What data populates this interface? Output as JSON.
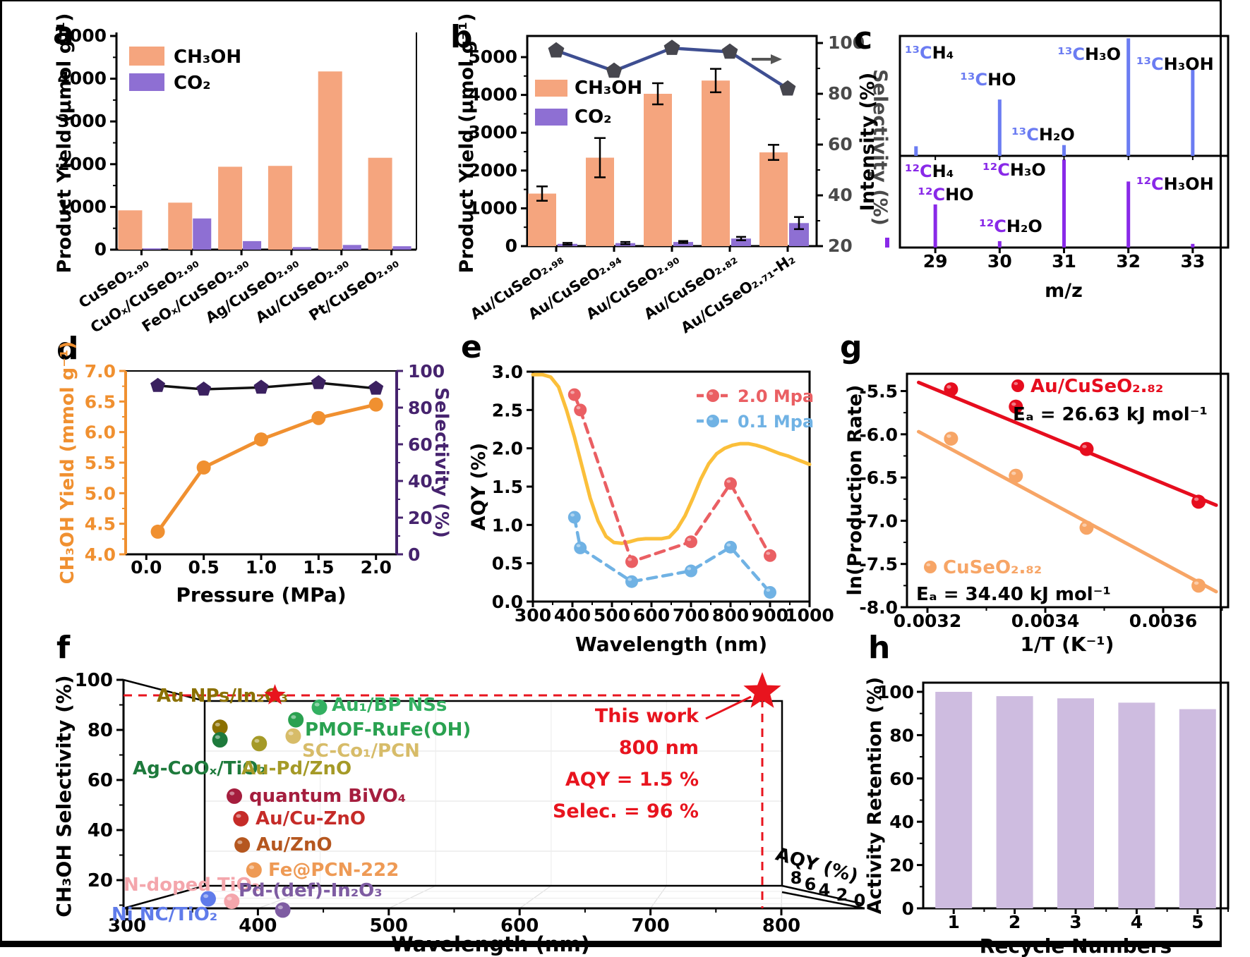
{
  "chart_data": [
    {
      "panel_label": "a",
      "type": "bar",
      "ylabel": "Product Yield (μmol g⁻¹)",
      "ylim": [
        0,
        5000
      ],
      "yticks": [
        0,
        1000,
        2000,
        3000,
        4000,
        5000
      ],
      "categories": [
        "CuSeO₂.₉₀",
        "CuOₓ/CuSeO₂.₉₀",
        "FeOₓ/CuSeO₂.₉₀",
        "Ag/CuSeO₂.₉₀",
        "Au/CuSeO₂.₉₀",
        "Pt/CuSeO₂.₉₀"
      ],
      "series": [
        {
          "name": "CH₃OH",
          "color": "#F5A57E",
          "values": [
            920,
            1100,
            1940,
            1960,
            4170,
            2150
          ]
        },
        {
          "name": "CO₂",
          "color": "#8E6FD3",
          "values": [
            30,
            730,
            200,
            60,
            110,
            80
          ]
        }
      ]
    },
    {
      "panel_label": "b",
      "type": "bar-line",
      "ylabel": "Product Yield (μmol g⁻¹)",
      "y2label": "Selectivity (%)",
      "ylim": [
        0,
        5600
      ],
      "yticks": [
        0,
        1000,
        2000,
        3000,
        4000,
        5000
      ],
      "y2ticks": [
        20,
        40,
        60,
        80,
        100
      ],
      "categories": [
        "Au/CuSeO₂.₉₈",
        "Au/CuSeO₂.₉₄",
        "Au/CuSeO₂.₉₀",
        "Au/CuSeO₂.₈₂",
        "Au/CuSeO₂.₇₁-H₂"
      ],
      "series": [
        {
          "name": "CH₃OH",
          "color": "#F5A57E",
          "values": [
            1390,
            2340,
            4030,
            4380,
            2480
          ],
          "errors": [
            190,
            520,
            280,
            310,
            200
          ]
        },
        {
          "name": "CO₂",
          "color": "#8E6FD3",
          "values": [
            60,
            80,
            110,
            200,
            610
          ],
          "errors": [
            25,
            30,
            25,
            45,
            160
          ]
        }
      ],
      "line": {
        "name": "Selectivity",
        "color": "#3E4E91",
        "marker_color": "#46464E",
        "values": [
          97,
          89,
          98,
          96.5,
          82
        ]
      }
    },
    {
      "panel_label": "c",
      "type": "mass-spec",
      "ylabel": "Intensity (%)",
      "xlabel": "m/z",
      "xticks": [
        29,
        30,
        31,
        32,
        33
      ],
      "top": {
        "color": "#6B7CF2",
        "peaks": [
          {
            "mz": 28.7,
            "h": 8
          },
          {
            "mz": 30,
            "h": 47
          },
          {
            "mz": 31,
            "h": 9
          },
          {
            "mz": 32,
            "h": 98
          },
          {
            "mz": 33,
            "h": 72
          }
        ],
        "labels": [
          {
            "prefix": "¹³C",
            "rest": "H₄"
          },
          {
            "prefix": "¹³C",
            "rest": "HO"
          },
          {
            "prefix": "¹³C",
            "rest": "H₂O"
          },
          {
            "prefix": "¹³C",
            "rest": "H₃O"
          },
          {
            "prefix": "¹³C",
            "rest": "H₃OH"
          }
        ]
      },
      "bottom": {
        "color": "#8929E8",
        "peaks": [
          {
            "mz": 29,
            "h": 47
          },
          {
            "mz": 30,
            "h": 7
          },
          {
            "mz": 31,
            "h": 96
          },
          {
            "mz": 32,
            "h": 72
          },
          {
            "mz": 33,
            "h": 4
          }
        ],
        "labels": [
          {
            "prefix": "¹²C",
            "rest": "H₄"
          },
          {
            "prefix": "¹²C",
            "rest": "H₃O"
          },
          {
            "prefix": "¹²C",
            "rest": "H₃OH"
          },
          {
            "prefix": "¹²C",
            "rest": "HO"
          },
          {
            "prefix": "¹²C",
            "rest": "H₂O"
          }
        ]
      }
    },
    {
      "panel_label": "d",
      "type": "dual-axis-line",
      "xlabel": "Pressure (MPa)",
      "ylabel": "CH₃OH Yield (mmol g⁻¹)",
      "y2label": "Selectivity (%)",
      "xticks": [
        0.0,
        0.5,
        1.0,
        1.5,
        2.0
      ],
      "ylim": [
        4.0,
        7.0
      ],
      "yticks": [
        4.0,
        4.5,
        5.0,
        5.5,
        6.0,
        6.5,
        7.0
      ],
      "y2lim": [
        0,
        100
      ],
      "y2ticks": [
        0,
        20,
        40,
        60,
        80,
        100
      ],
      "axis_colors": {
        "left": "#F09030",
        "right": "#46236E"
      },
      "series1": {
        "name": "CH₃OH Yield",
        "color": "#F09030",
        "x": [
          0.1,
          0.5,
          1.0,
          1.5,
          2.0
        ],
        "y": [
          4.37,
          5.42,
          5.88,
          6.23,
          6.45
        ]
      },
      "series2": {
        "name": "Selectivity",
        "color": "#111111",
        "marker_color": "#3B2160",
        "x": [
          0.1,
          0.5,
          1.0,
          1.5,
          2.0
        ],
        "y": [
          92,
          90,
          91,
          93.5,
          90.5
        ]
      }
    },
    {
      "panel_label": "e",
      "type": "multi-line",
      "xlabel": "Wavelength (nm)",
      "ylabel": "AQY (%)",
      "xlim": [
        300,
        1000
      ],
      "xticks": [
        300,
        400,
        500,
        600,
        700,
        800,
        900,
        1000
      ],
      "ylim": [
        0.0,
        3.0
      ],
      "yticks": [
        "0.0",
        "0.5",
        "1.0",
        "1.5",
        "2.0",
        "2.5",
        "3.0"
      ],
      "absorption": {
        "color": "#FBBF3A",
        "x": [
          300,
          325,
          345,
          365,
          385,
          405,
          425,
          445,
          465,
          485,
          505,
          525,
          545,
          565,
          585,
          605,
          625,
          645,
          665,
          685,
          705,
          725,
          745,
          765,
          785,
          805,
          825,
          845,
          865,
          885,
          905,
          925,
          945,
          965,
          985,
          1000
        ],
        "y": [
          2.96,
          2.96,
          2.93,
          2.8,
          2.5,
          2.15,
          1.75,
          1.35,
          1.05,
          0.85,
          0.77,
          0.76,
          0.78,
          0.81,
          0.82,
          0.82,
          0.82,
          0.84,
          0.95,
          1.12,
          1.35,
          1.6,
          1.8,
          1.93,
          2.0,
          2.04,
          2.06,
          2.06,
          2.04,
          2.01,
          1.97,
          1.93,
          1.9,
          1.86,
          1.82,
          1.79
        ]
      },
      "series": [
        {
          "name": "2.0 Mpa",
          "color": "#EA5F63",
          "x": [
            405,
            420,
            550,
            700,
            800,
            900
          ],
          "y": [
            2.7,
            2.5,
            0.52,
            0.78,
            1.54,
            0.6
          ]
        },
        {
          "name": "0.1 Mpa",
          "color": "#70B2E4",
          "x": [
            405,
            420,
            550,
            700,
            800,
            900
          ],
          "y": [
            1.1,
            0.7,
            0.26,
            0.4,
            0.71,
            0.12
          ]
        }
      ]
    },
    {
      "panel_label": "f",
      "type": "scatter3d",
      "xlabel": "Wavelength (nm)",
      "ylabel": "CH₃OH Selectivity (%)",
      "zlabel": "AQY (%)",
      "xticks": [
        300,
        400,
        500,
        600,
        700,
        800
      ],
      "yticks": [
        20,
        40,
        60,
        80,
        100
      ],
      "zticks": [
        8,
        6,
        4,
        2,
        0
      ],
      "points": [
        {
          "label": "Au NPs/In₂O₃",
          "color": "#8B7000",
          "wavelength": 371,
          "selectivity": 89.5
        },
        {
          "label": "Ag-CoOₓ/TiO₂",
          "color": "#1E7A3C",
          "wavelength": 371,
          "selectivity": 84.5
        },
        {
          "label": "Au₁/BP NSs",
          "color": "#33B061",
          "wavelength": 447,
          "selectivity": 97.5
        },
        {
          "label": "PMOF-RuFe(OH)",
          "color": "#2AA150",
          "wavelength": 429,
          "selectivity": 92.5
        },
        {
          "label": "SC-Co₁/PCN",
          "color": "#D7BC69",
          "wavelength": 427,
          "selectivity": 86
        },
        {
          "label": "Au-Pd/ZnO",
          "color": "#A59A27",
          "wavelength": 401,
          "selectivity": 83
        },
        {
          "label": "quantum BiVO₄",
          "color": "#A51E3E",
          "wavelength": 382,
          "selectivity": 62
        },
        {
          "label": "Au/Cu-ZnO",
          "color": "#C52B28",
          "wavelength": 387,
          "selectivity": 53
        },
        {
          "label": "Au/ZnO",
          "color": "#B5571F",
          "wavelength": 388,
          "selectivity": 42.5
        },
        {
          "label": "Fe@PCN-222",
          "color": "#EE9A55",
          "wavelength": 397,
          "selectivity": 32.5
        },
        {
          "label": "N-doped TiO₂",
          "color": "#F4A6AC",
          "wavelength": 380,
          "selectivity": 20
        },
        {
          "label": "Pd-(def)-In₂O₃",
          "color": "#7E5CA2",
          "wavelength": 419,
          "selectivity": 16.5
        },
        {
          "label": "Ni NC/TiO₂",
          "color": "#5F7BEA",
          "wavelength": 362,
          "selectivity": 21
        }
      ],
      "this_work": {
        "color": "#E8141E",
        "star_small": {
          "wavelength": 413,
          "selectivity": 94
        },
        "star_big": {
          "wavelength": 792,
          "selectivity": 96
        },
        "annotation": [
          "This work",
          "800 nm",
          "AQY = 1.5 %",
          "Selec. = 96 %"
        ]
      }
    },
    {
      "panel_label": "g",
      "type": "arrhenius",
      "xlabel": "1/T (K⁻¹)",
      "ylabel": "ln(Production Rate)",
      "xticks": [
        "0.0032",
        "0.0034",
        "0.0036"
      ],
      "yticks": [
        "-5.5",
        "-6.0",
        "-6.5",
        "-7.0",
        "-7.5",
        "-8.0"
      ],
      "series": [
        {
          "name": "Au/CuSeO₂.₈₂",
          "color": "#E60D1E",
          "ea_label": "Eₐ = 26.63 kJ mol⁻¹",
          "x": [
            0.00324,
            0.00335,
            0.00347,
            0.00366
          ],
          "y": [
            -5.48,
            -5.68,
            -6.17,
            -6.78
          ],
          "fit": [
            [
              0.003185,
              -5.4
            ],
            [
              0.00369,
              -6.82
            ]
          ]
        },
        {
          "name": "CuSeO₂.₈₂",
          "color": "#F7A566",
          "ea_label": "Eₐ = 34.40 kJ mol⁻¹",
          "x": [
            0.00324,
            0.00335,
            0.00347,
            0.00366
          ],
          "y": [
            -6.05,
            -6.48,
            -7.08,
            -7.75
          ],
          "fit": [
            [
              0.003185,
              -5.97
            ],
            [
              0.00369,
              -7.82
            ]
          ]
        }
      ]
    },
    {
      "panel_label": "h",
      "type": "bar",
      "xlabel": "Recycle Numbers",
      "ylabel": "Activity Retention (%)",
      "categories": [
        "1",
        "2",
        "3",
        "4",
        "5"
      ],
      "values": [
        100,
        98,
        97,
        95,
        92
      ],
      "bar_color": "#CEBCE0",
      "ylim": [
        0,
        100
      ],
      "yticks": [
        0,
        20,
        40,
        60,
        80,
        100
      ]
    }
  ]
}
